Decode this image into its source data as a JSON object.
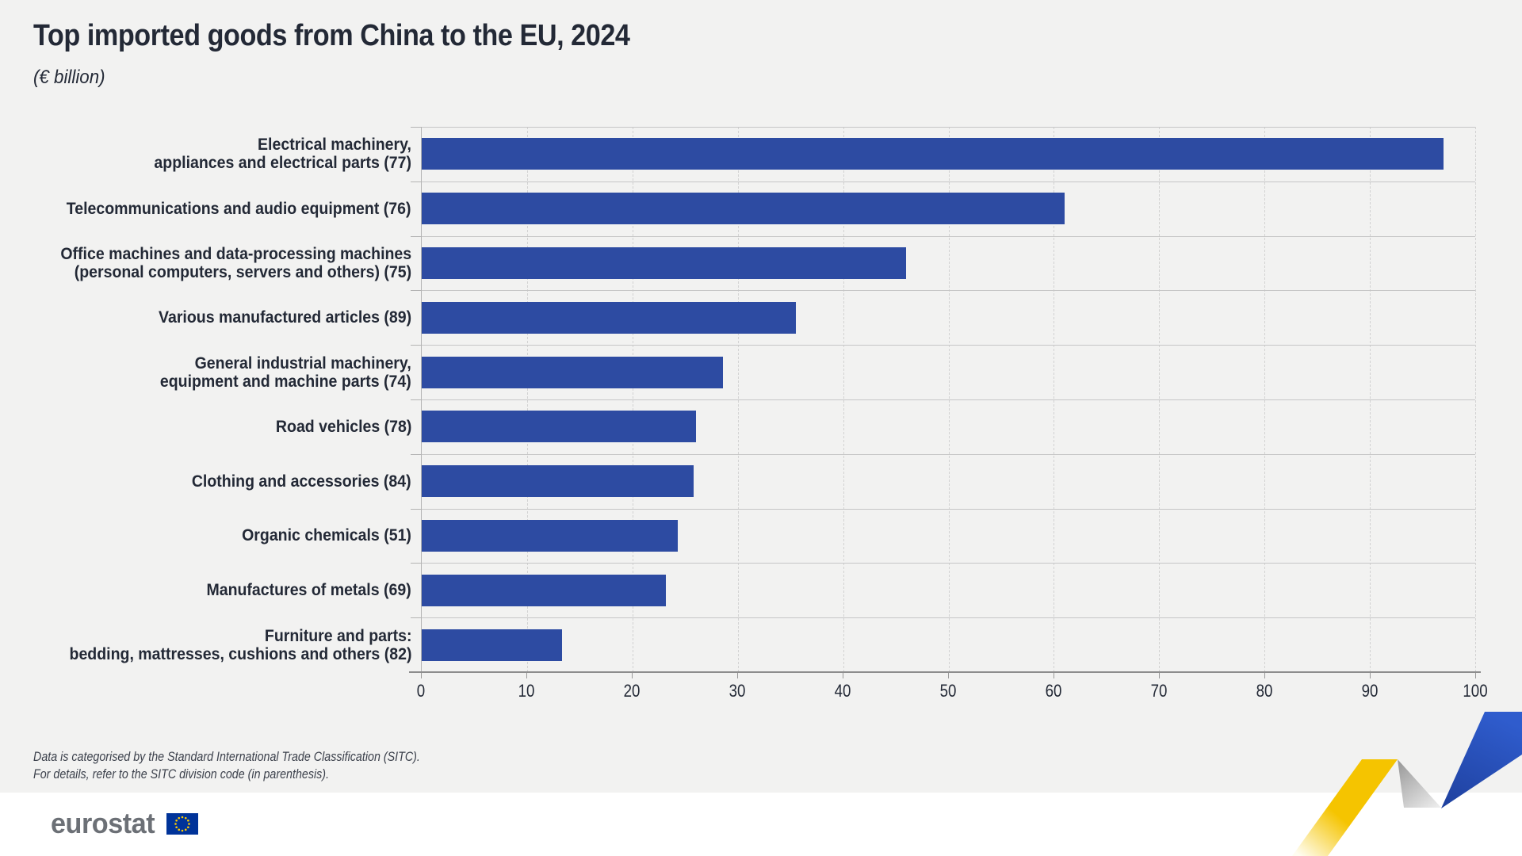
{
  "header": {
    "title": "Top imported goods from China to the EU, 2024",
    "subtitle": "(€ billion)"
  },
  "chart_data": {
    "type": "bar",
    "orientation": "horizontal",
    "title": "Top imported goods from China to the EU, 2024",
    "unit_subtitle": "(€ billion)",
    "categories": [
      "Electrical machinery, appliances and electrical parts (77)",
      "Telecommunications and audio equipment (76)",
      "Office machines and data-processing machines (personal computers, servers and others) (75)",
      "Various manufactured articles (89)",
      "General industrial machinery, equipment and machine parts (74)",
      "Road vehicles (78)",
      "Clothing and accessories (84)",
      "Organic chemicals (51)",
      "Manufactures of metals (69)",
      "Furniture and parts: bedding, mattresses, cushions and others (82)"
    ],
    "label_lines": [
      [
        "Electrical machinery,",
        "appliances and electrical parts (77)"
      ],
      [
        "Telecommunications and audio equipment (76)"
      ],
      [
        "Office machines and data-processing machines",
        "(personal computers, servers and others) (75)"
      ],
      [
        "Various manufactured articles (89)"
      ],
      [
        "General industrial machinery,",
        "equipment and machine parts (74)"
      ],
      [
        "Road vehicles (78)"
      ],
      [
        "Clothing and accessories (84)"
      ],
      [
        "Organic chemicals (51)"
      ],
      [
        "Manufactures of metals (69)"
      ],
      [
        "Furniture and parts:",
        "bedding, mattresses, cushions and others (82)"
      ]
    ],
    "values": [
      97,
      61,
      46,
      35.5,
      28.6,
      26,
      25.8,
      24.3,
      23.2,
      13.3
    ],
    "xlabel": "",
    "ylabel": "",
    "xlim": [
      0,
      100
    ],
    "x_ticks": [
      0,
      10,
      20,
      30,
      40,
      50,
      60,
      70,
      80,
      90,
      100
    ],
    "grid": "vertical-dashed",
    "legend": "none",
    "bar_color": "#2d4ba2"
  },
  "footnote": {
    "line1": "Data is categorised by the Standard International Trade Classification (SITC).",
    "line2": "For details, refer to the SITC division code (in parenthesis)."
  },
  "branding": {
    "logo_text": "eurostat",
    "flag_icon": "eu-flag-icon"
  },
  "colors": {
    "bar": "#2d4ba2",
    "text_dark": "#232936",
    "background": "#f2f2f1",
    "footer_background": "#ffffff",
    "separator": "#c6c6c6",
    "gridline": "#d2d2d2",
    "axis": "#8d8d8d",
    "logo_gray": "#6c7076",
    "eu_flag_blue": "#003399",
    "eu_flag_stars": "#ffcc00",
    "deco_yellow": "#f5c400",
    "deco_gray": "#bcbcbc",
    "deco_blue": "#2a52c4"
  }
}
